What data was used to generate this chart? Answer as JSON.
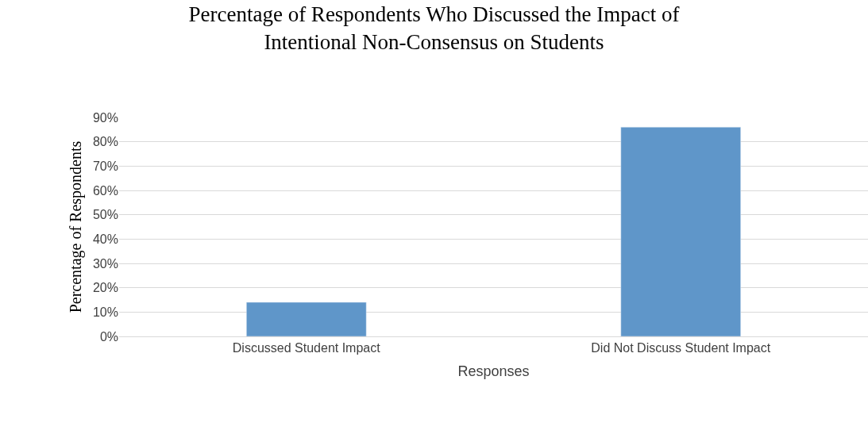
{
  "chart_data": {
    "type": "bar",
    "title": "Percentage of Respondents Who Discussed the Impact of\nIntentional Non-Consensus on Students",
    "xlabel": "Responses",
    "ylabel": "Percentage of Respondents",
    "categories": [
      "Discussed Student Impact",
      "Did Not Discuss Student Impact"
    ],
    "values": [
      14,
      86
    ],
    "color": "#5f96c9",
    "ylim": [
      0,
      90
    ],
    "yticks": [
      {
        "value": 0,
        "label": "0%"
      },
      {
        "value": 10,
        "label": "10%"
      },
      {
        "value": 20,
        "label": "20%"
      },
      {
        "value": 30,
        "label": "30%"
      },
      {
        "value": 40,
        "label": "40%"
      },
      {
        "value": 50,
        "label": "50%"
      },
      {
        "value": 60,
        "label": "60%"
      },
      {
        "value": 70,
        "label": "70%"
      },
      {
        "value": 80,
        "label": "80%"
      },
      {
        "value": 90,
        "label": "90%"
      }
    ],
    "grid": "y",
    "legend": false
  }
}
